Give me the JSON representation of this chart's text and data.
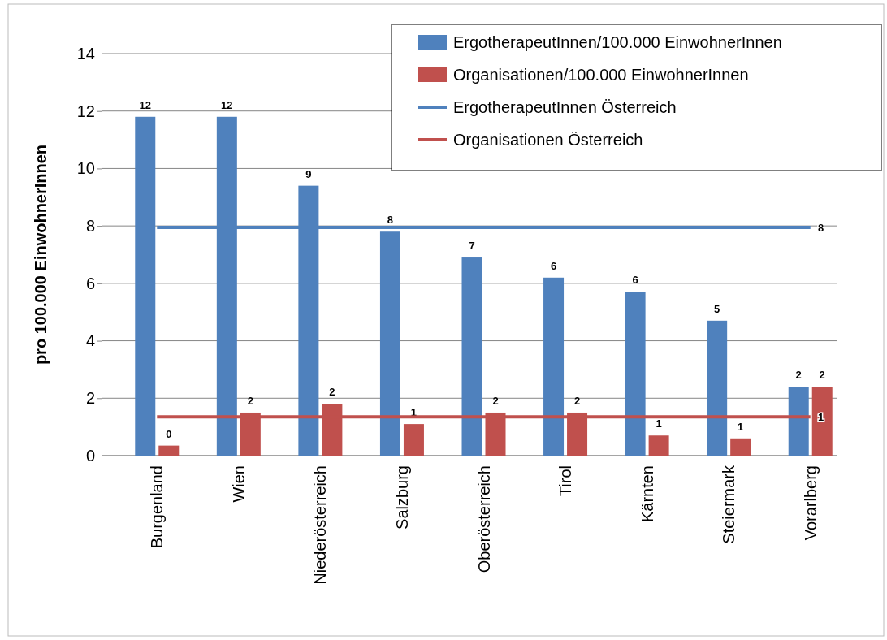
{
  "chart_data": {
    "type": "bar",
    "ylabel": "pro 100.000 EinwohnerInnen",
    "categories": [
      "Burgenland",
      "Wien",
      "Niederösterreich",
      "Salzburg",
      "Oberösterreich",
      "Tirol",
      "Kärnten",
      "Steiermark",
      "Vorarlberg"
    ],
    "series": [
      {
        "name": "ErgotherapeutInnen/100.000 EinwohnerInnen",
        "color": "#4f81bd",
        "values": [
          11.8,
          11.8,
          9.4,
          7.8,
          6.9,
          6.2,
          5.7,
          4.7,
          2.4
        ],
        "value_labels": [
          "12",
          "12",
          "9",
          "8",
          "7",
          "6",
          "6",
          "5",
          "2"
        ]
      },
      {
        "name": "Organisationen/100.000 EinwohnerInnen",
        "color": "#c0504d",
        "values": [
          0.35,
          1.5,
          1.8,
          1.1,
          1.5,
          1.5,
          0.7,
          0.6,
          2.4
        ],
        "value_labels": [
          "0",
          "2",
          "2",
          "1",
          "2",
          "2",
          "1",
          "1",
          "2"
        ]
      },
      {
        "name": "ErgotherapeutInnen Österreich",
        "type": "line",
        "color": "#4f81bd",
        "values": [
          7.95,
          7.95,
          7.95,
          7.95,
          7.95,
          7.95,
          7.95,
          7.95,
          7.95
        ],
        "value_labels": [
          null,
          null,
          null,
          null,
          null,
          null,
          null,
          null,
          "8"
        ]
      },
      {
        "name": "Organisationen Österreich",
        "type": "line",
        "color": "#c0504d",
        "values": [
          1.35,
          1.35,
          1.35,
          1.35,
          1.35,
          1.35,
          1.35,
          1.35,
          1.35
        ],
        "value_labels": [
          null,
          null,
          null,
          null,
          null,
          null,
          null,
          null,
          "1"
        ]
      }
    ],
    "ylim": [
      0,
      14
    ],
    "yticks": [
      0,
      2,
      4,
      6,
      8,
      10,
      12,
      14
    ],
    "grid": "y",
    "legend": "top right",
    "marker": "none",
    "line_style": "solid"
  }
}
